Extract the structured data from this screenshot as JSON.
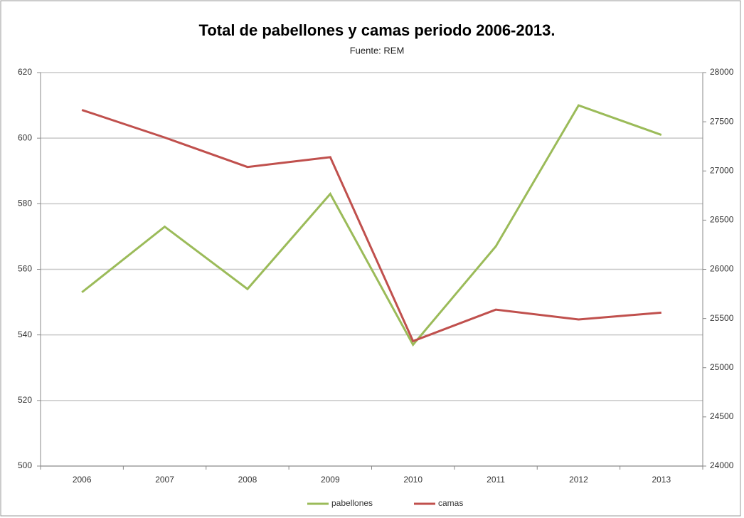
{
  "chart_data": {
    "type": "line",
    "title": "Total de pabellones y camas periodo 2006-2013.",
    "subtitle": "Fuente: REM",
    "categories": [
      "2006",
      "2007",
      "2008",
      "2009",
      "2010",
      "2011",
      "2012",
      "2013"
    ],
    "series": [
      {
        "name": "pabellones",
        "color": "#9bbb59",
        "values": [
          553,
          573,
          554,
          583,
          537,
          567,
          610,
          601
        ]
      },
      {
        "name": "camas",
        "color": "#c0504d",
        "axis": "y2",
        "values": [
          27620,
          27340,
          27040,
          27140,
          25270,
          25590,
          25490,
          25560
        ]
      }
    ],
    "ylim": [
      500,
      620
    ],
    "yticks": [
      500,
      520,
      540,
      560,
      580,
      600,
      620
    ],
    "y2lim": [
      24000,
      28000
    ],
    "y2ticks": [
      24000,
      24500,
      25000,
      25500,
      26000,
      26500,
      27000,
      27500,
      28000
    ],
    "grid": true,
    "legend": "bottom"
  }
}
